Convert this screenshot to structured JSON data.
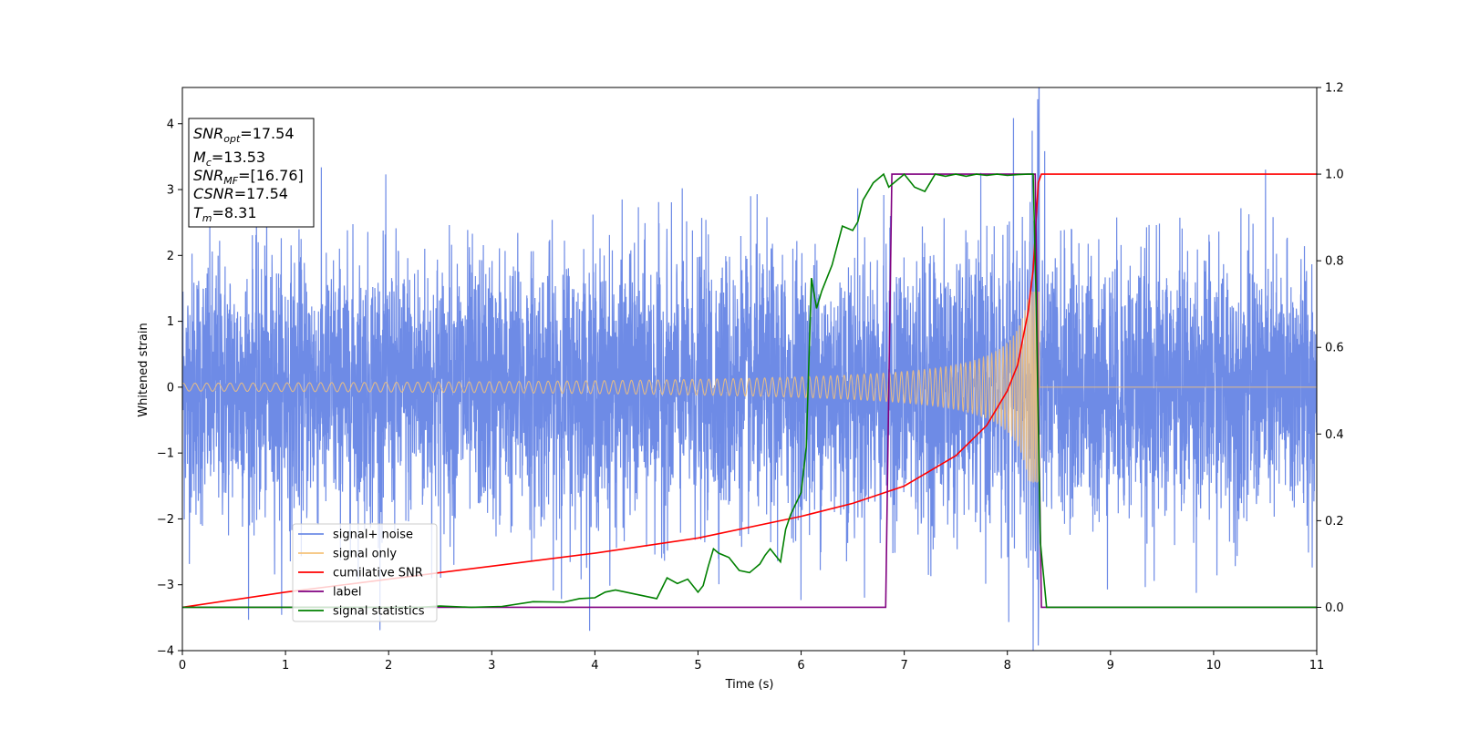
{
  "chart_data": {
    "type": "line",
    "xlabel": "Time (s)",
    "ylabel": "Whitened strain",
    "xlim": [
      0,
      11
    ],
    "ylim": [
      -4,
      4.55
    ],
    "y2lim": [
      -0.1,
      1.2
    ],
    "x_ticks": [
      0,
      1,
      2,
      3,
      4,
      5,
      6,
      7,
      8,
      9,
      10,
      11
    ],
    "y_ticks": [
      -4,
      -3,
      -2,
      -1,
      0,
      1,
      2,
      3,
      4
    ],
    "y2_ticks": [
      0.0,
      0.2,
      0.4,
      0.6,
      0.8,
      1.0,
      1.2
    ],
    "grid": false,
    "legend_position": "lower-left",
    "info_box": [
      {
        "base": "SNR",
        "sub": "opt",
        "rest": "=17.54"
      },
      {
        "base": "M",
        "sub": "c",
        "rest": "=13.53"
      },
      {
        "base": "SNR",
        "sub": "MF",
        "rest": "=[16.76]"
      },
      {
        "base": "CSNR",
        "sub": "",
        "rest": "=17.54"
      },
      {
        "base": "T",
        "sub": "m",
        "rest": "=8.31"
      }
    ],
    "series": [
      {
        "name": "signal+ noise",
        "color": "#6e8be6",
        "axis": "left",
        "kind": "noise",
        "std": 1.0,
        "max": 4.17,
        "min": -3.62
      },
      {
        "name": "signal only",
        "color": "#f5c27a",
        "axis": "left",
        "kind": "chirp",
        "merger_time": 8.31
      },
      {
        "name": "cumilative SNR",
        "color": "#ff0000",
        "axis": "right",
        "x": [
          0,
          1,
          2,
          3,
          4,
          5,
          6,
          6.5,
          7,
          7.5,
          7.8,
          8.0,
          8.1,
          8.2,
          8.25,
          8.3,
          8.33,
          11
        ],
        "y": [
          0.0,
          0.035,
          0.065,
          0.095,
          0.125,
          0.16,
          0.21,
          0.24,
          0.28,
          0.35,
          0.42,
          0.5,
          0.56,
          0.68,
          0.78,
          0.98,
          1.0,
          1.0
        ]
      },
      {
        "name": "label",
        "color": "#800080",
        "axis": "right",
        "x": [
          0,
          6.82,
          6.88,
          8.27,
          8.33,
          11
        ],
        "y": [
          0,
          0,
          1,
          1,
          0,
          0
        ]
      },
      {
        "name": "signal statistics",
        "color": "#008000",
        "axis": "right",
        "x": [
          0,
          2.3,
          2.5,
          2.8,
          3.1,
          3.4,
          3.7,
          3.85,
          4.0,
          4.1,
          4.2,
          4.3,
          4.4,
          4.5,
          4.6,
          4.7,
          4.8,
          4.9,
          5.0,
          5.05,
          5.1,
          5.15,
          5.2,
          5.3,
          5.4,
          5.5,
          5.55,
          5.6,
          5.65,
          5.7,
          5.75,
          5.8,
          5.85,
          5.9,
          5.95,
          6.0,
          6.05,
          6.1,
          6.15,
          6.2,
          6.3,
          6.4,
          6.5,
          6.55,
          6.6,
          6.7,
          6.75,
          6.8,
          6.85,
          6.9,
          7.0,
          7.1,
          7.2,
          7.3,
          7.4,
          7.5,
          7.6,
          7.7,
          7.8,
          7.9,
          8.0,
          8.1,
          8.2,
          8.25,
          8.28,
          8.32,
          8.38,
          11
        ],
        "y": [
          0,
          0,
          0.003,
          0.0,
          0.002,
          0.013,
          0.012,
          0.02,
          0.022,
          0.035,
          0.04,
          0.035,
          0.03,
          0.025,
          0.02,
          0.068,
          0.055,
          0.065,
          0.035,
          0.05,
          0.095,
          0.135,
          0.125,
          0.115,
          0.085,
          0.08,
          0.09,
          0.1,
          0.12,
          0.135,
          0.12,
          0.105,
          0.18,
          0.215,
          0.24,
          0.265,
          0.37,
          0.76,
          0.69,
          0.73,
          0.79,
          0.88,
          0.87,
          0.89,
          0.94,
          0.98,
          0.99,
          1.0,
          0.97,
          0.98,
          1.0,
          0.97,
          0.96,
          1.0,
          0.995,
          1.0,
          0.995,
          1.0,
          0.997,
          1.0,
          0.997,
          0.999,
          1.0,
          1.0,
          0.7,
          0.15,
          0.0,
          0.0
        ]
      }
    ]
  }
}
